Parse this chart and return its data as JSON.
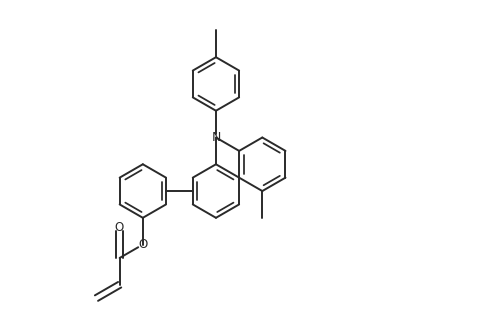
{
  "bg_color": "#ffffff",
  "line_color": "#2a2a2a",
  "line_width": 1.4,
  "fig_width": 4.92,
  "fig_height": 3.12,
  "dpi": 100,
  "xlim": [
    0,
    9.84
  ],
  "ylim": [
    0,
    6.24
  ]
}
